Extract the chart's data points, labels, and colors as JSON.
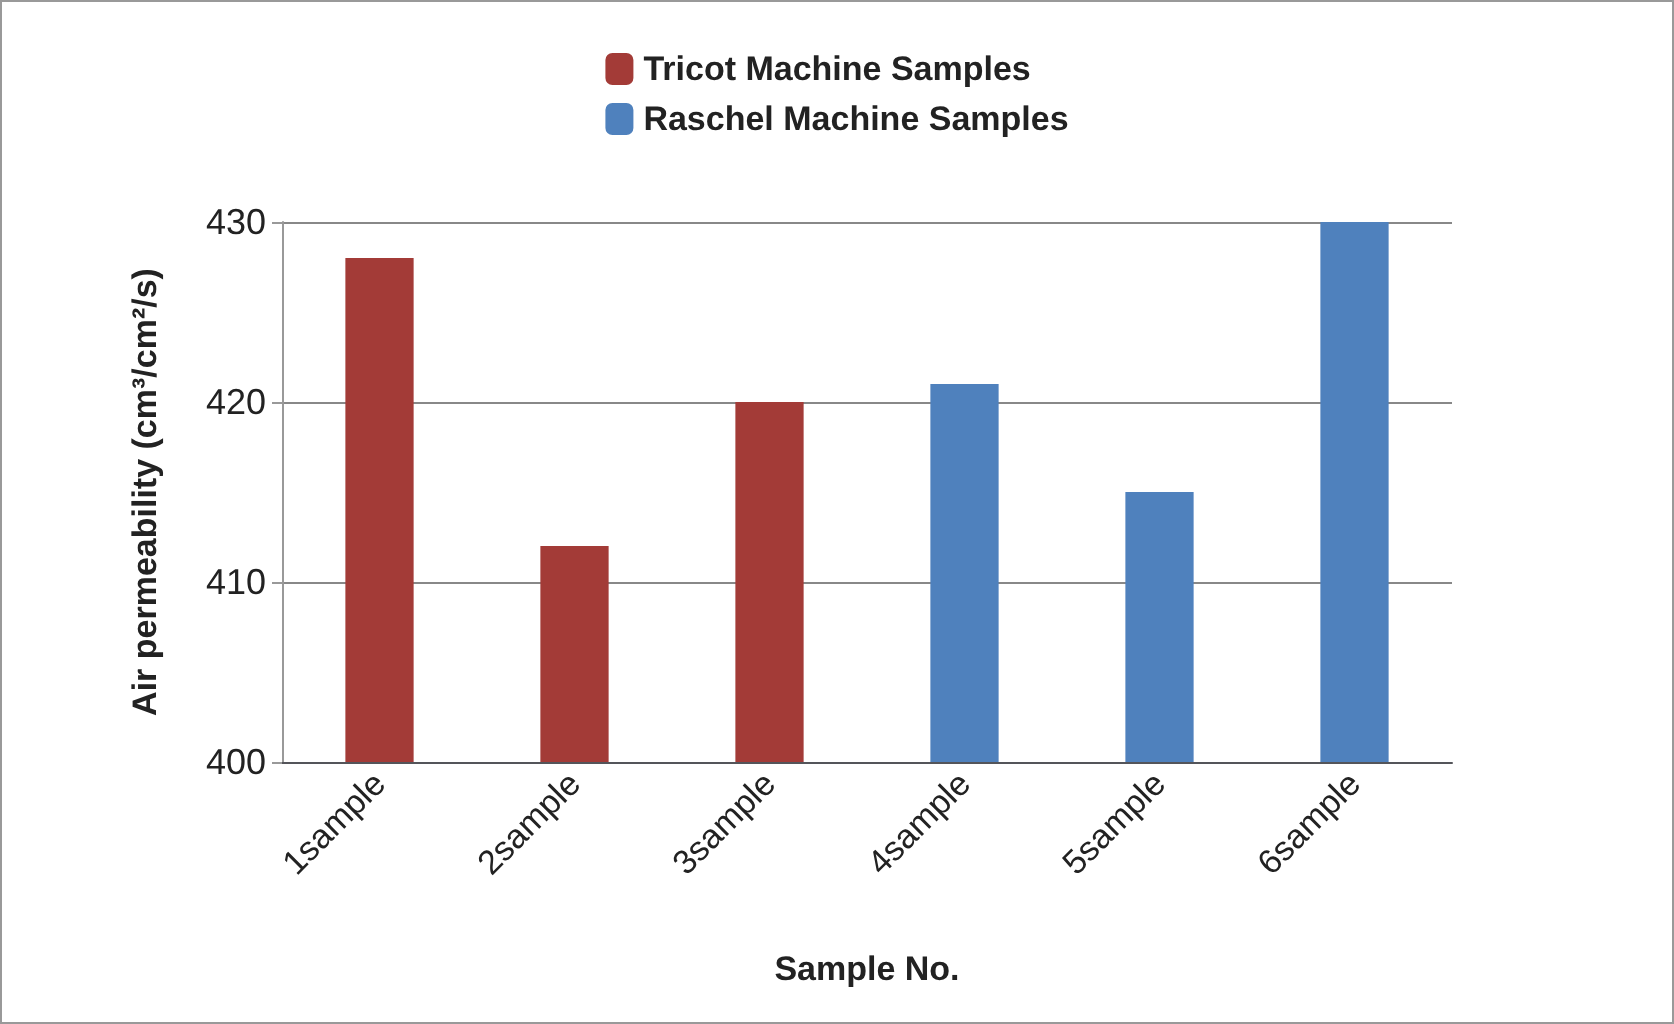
{
  "chart_data": {
    "type": "bar",
    "xlabel": "Sample No.",
    "ylabel": "Air permeability (cm³/cm²/s)",
    "categories": [
      "1sample",
      "2sample",
      "3sample",
      "4sample",
      "5sample",
      "6sample"
    ],
    "series": [
      {
        "name": "Tricot Machine Samples",
        "color": "#a33b37",
        "values": [
          428,
          412,
          420,
          null,
          null,
          null
        ]
      },
      {
        "name": "Raschel Machine Samples",
        "color": "#4f81bd",
        "values": [
          null,
          null,
          null,
          421,
          415,
          430
        ]
      }
    ],
    "ylim": [
      400,
      430
    ],
    "yticks": [
      400,
      410,
      420,
      430
    ],
    "grid": "y",
    "legend": "top"
  }
}
